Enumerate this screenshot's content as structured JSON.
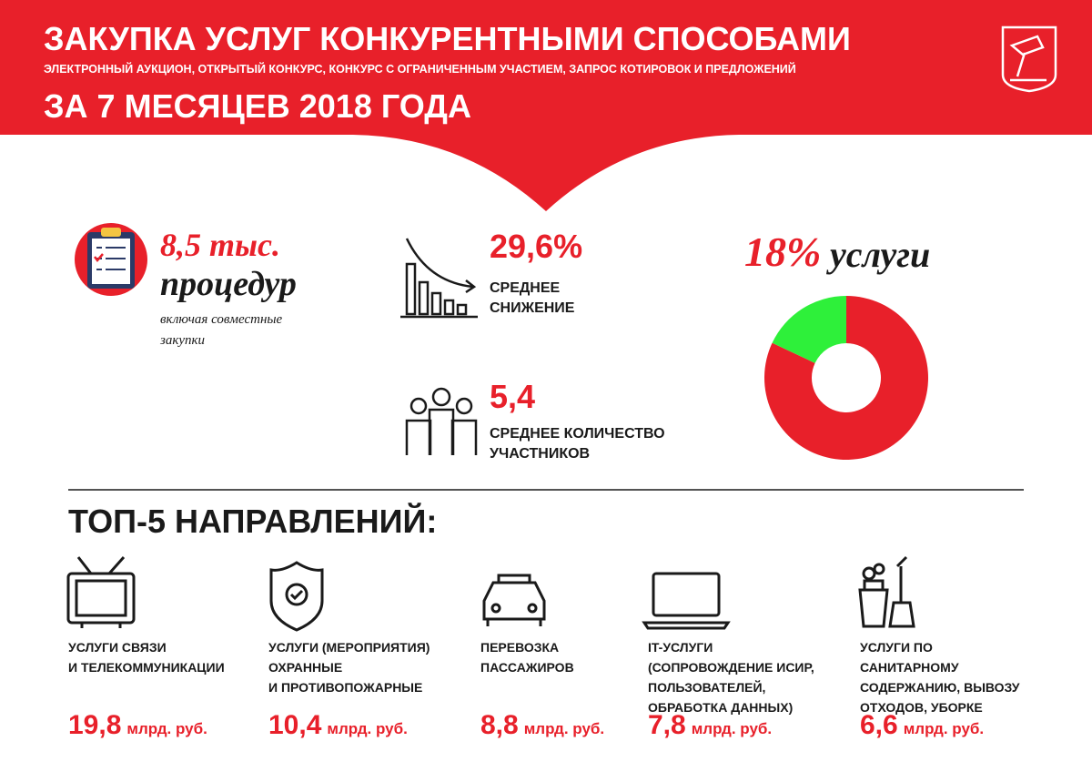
{
  "header": {
    "title": "ЗАКУПКА УСЛУГ КОНКУРЕНТНЫМИ СПОСОБАМИ",
    "subtitle": "ЭЛЕКТРОННЫЙ АУКЦИОН, ОТКРЫТЫЙ КОНКУРС, КОНКУРС С ОГРАНИЧЕННЫМ УЧАСТИЕМ, ЗАПРОС КОТИРОВОК И ПРЕДЛОЖЕНИЙ",
    "period": "ЗА 7 МЕСЯЦЕВ 2018 ГОДА"
  },
  "procedures": {
    "value": "8,5 тыс.",
    "label": "процедур",
    "note": [
      "включая совместные",
      "закупки"
    ]
  },
  "reduction": {
    "value": "29,6%",
    "label": [
      "СРЕДНЕЕ",
      "СНИЖЕНИЕ"
    ]
  },
  "participants": {
    "value": "5,4",
    "label": [
      "СРЕДНЕЕ КОЛИЧЕСТВО",
      "УЧАСТНИКОВ"
    ]
  },
  "share": {
    "value": 18,
    "label": "18%",
    "caption": "услуги"
  },
  "top": {
    "title": "ТОП-5 НАПРАВЛЕНИЙ:",
    "items": [
      {
        "label": [
          "УСЛУГИ СВЯЗИ",
          "И ТЕЛЕКОММУНИКАЦИИ"
        ],
        "amount": "19,8",
        "unit": "млрд. руб."
      },
      {
        "label": [
          "УСЛУГИ (МЕРОПРИЯТИЯ)",
          "ОХРАННЫЕ",
          "И ПРОТИВОПОЖАРНЫЕ"
        ],
        "amount": "10,4",
        "unit": "млрд. руб."
      },
      {
        "label": [
          "ПЕРЕВОЗКА",
          "ПАССАЖИРОВ"
        ],
        "amount": "8,8",
        "unit": "млрд. руб."
      },
      {
        "label": [
          "IT-УСЛУГИ",
          "(СОПРОВОЖДЕНИЕ ИСИР,",
          "ПОЛЬЗОВАТЕЛЕЙ,",
          "ОБРАБОТКА ДАННЫХ)"
        ],
        "amount": "7,8",
        "unit": "млрд. руб."
      },
      {
        "label": [
          "УСЛУГИ ПО",
          "САНИТАРНОМУ",
          "СОДЕРЖАНИЮ, ВЫВОЗУ",
          "ОТХОДОВ, УБОРКЕ"
        ],
        "amount": "6,6",
        "unit": "млрд. руб."
      }
    ]
  }
}
